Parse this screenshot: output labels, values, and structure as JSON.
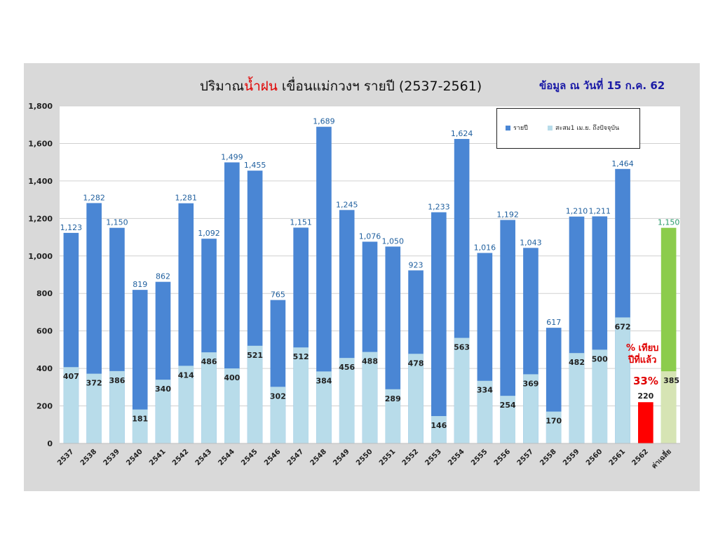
{
  "title": {
    "part1": "ปริมาณ",
    "part2": "น้ำฝน",
    "part3": " เขื่อนแม่กวงฯ รายปี  (2537-2561)"
  },
  "subtitle": "ข้อมูล ณ วันที่  15 ก.ค. 62",
  "note": {
    "line1": "% เทียบ",
    "line2": "ปีที่แล้ว",
    "value": "33%"
  },
  "legend": {
    "annual": "รายปี",
    "cumulative": "สะสม1 เม.ย. ถึงปัจจุบัน"
  },
  "colors": {
    "annual": "#4a86d4",
    "cumulative": "#b8dcea",
    "current": "#ff0000",
    "average": "#8ccc4c",
    "average_cumulative": "#d6e4b4",
    "label_top": "#1f5f9e",
    "label_avg": "#2a9a6a",
    "label_bottom": "#222222"
  },
  "chart_data": {
    "type": "bar",
    "title": "ปริมาณน้ำฝน เขื่อนแม่กวงฯ รายปี  (2537-2561)",
    "categories": [
      "2537",
      "2538",
      "2539",
      "2540",
      "2541",
      "2542",
      "2543",
      "2544",
      "2545",
      "2546",
      "2547",
      "2548",
      "2549",
      "2550",
      "2551",
      "2552",
      "2553",
      "2554",
      "2555",
      "2556",
      "2557",
      "2558",
      "2559",
      "2560",
      "2561",
      "2562",
      "ค่าเฉลี่ย"
    ],
    "series": [
      {
        "name": "รายปี",
        "values": [
          1123,
          1282,
          1150,
          819,
          862,
          1281,
          1092,
          1499,
          1455,
          765,
          1151,
          1689,
          1245,
          1076,
          1050,
          923,
          1233,
          1624,
          1016,
          1192,
          1043,
          617,
          1210,
          1211,
          1464,
          null,
          1150
        ],
        "labels": [
          "1,123",
          "1,282",
          "1,150",
          "819",
          "862",
          "1,281",
          "1,092",
          "1,499",
          "1,455",
          "765",
          "1,151",
          "1,689",
          "1,245",
          "1,076",
          "1,050",
          "923",
          "1,233",
          "1,624",
          "1,016",
          "1,192",
          "1,043",
          "617",
          "1,210",
          "1,211",
          "1,464",
          "",
          "1,150"
        ]
      },
      {
        "name": "สะสม1 เม.ย. ถึงปัจจุบัน",
        "values": [
          407,
          372,
          386,
          181,
          340,
          414,
          486,
          400,
          521,
          302,
          512,
          384,
          456,
          488,
          289,
          478,
          146,
          563,
          334,
          254,
          369,
          170,
          482,
          500,
          672,
          220,
          385
        ],
        "labels": [
          "407",
          "372",
          "386",
          "181",
          "340",
          "414",
          "486",
          "400",
          "521",
          "302",
          "512",
          "384",
          "456",
          "488",
          "289",
          "478",
          "146",
          "563",
          "334",
          "254",
          "369",
          "170",
          "482",
          "500",
          "672",
          "220",
          "385"
        ]
      }
    ],
    "ylim": [
      0,
      1800
    ],
    "yticks": [
      "0",
      "200",
      "400",
      "600",
      "800",
      "1,000",
      "1,200",
      "1,400",
      "1,600",
      "1,800"
    ],
    "grid": true,
    "legend_position": "top-right"
  }
}
